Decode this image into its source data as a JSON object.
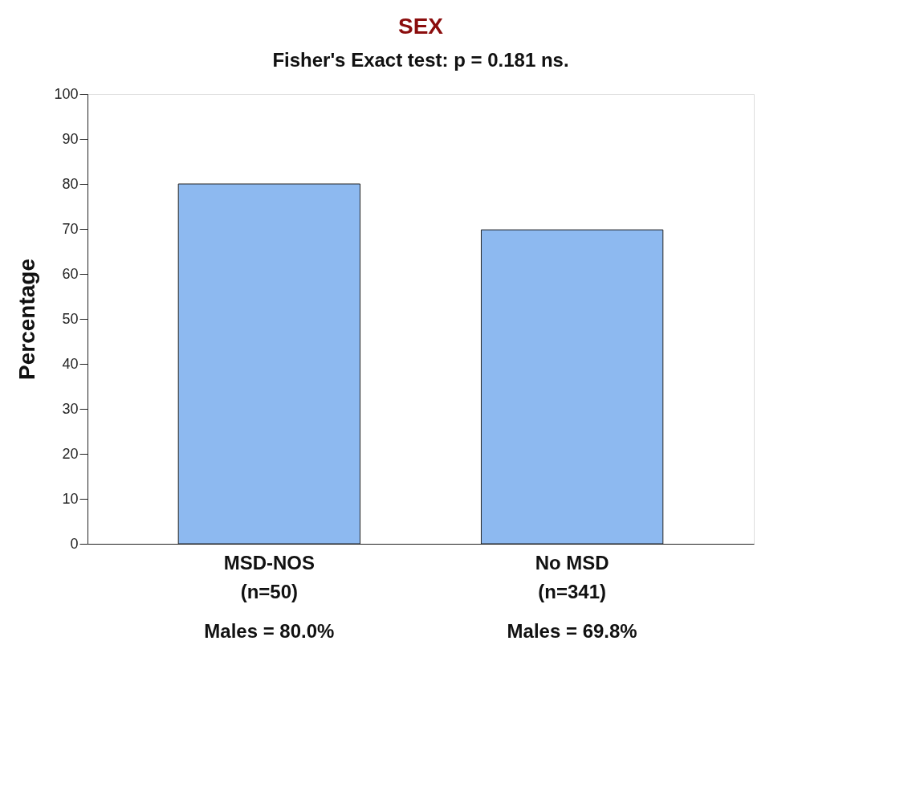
{
  "chart_data": {
    "type": "bar",
    "title": "SEX",
    "annotations": [
      "Fisher's Exact test: p = 0.181 ns."
    ],
    "ylabel": "Percentage",
    "categories": [
      "MSD-NOS\n(n=50)",
      "No MSD\n(n=341)"
    ],
    "values": [
      80.0,
      69.8
    ],
    "value_labels": [
      "Males = 80.0%",
      "Males = 69.8%"
    ],
    "color": "#8db9f0",
    "ylim": [
      0,
      100
    ],
    "yticks": [
      0,
      10,
      20,
      30,
      40,
      50,
      60,
      70,
      80,
      90,
      100
    ],
    "grid": false
  }
}
